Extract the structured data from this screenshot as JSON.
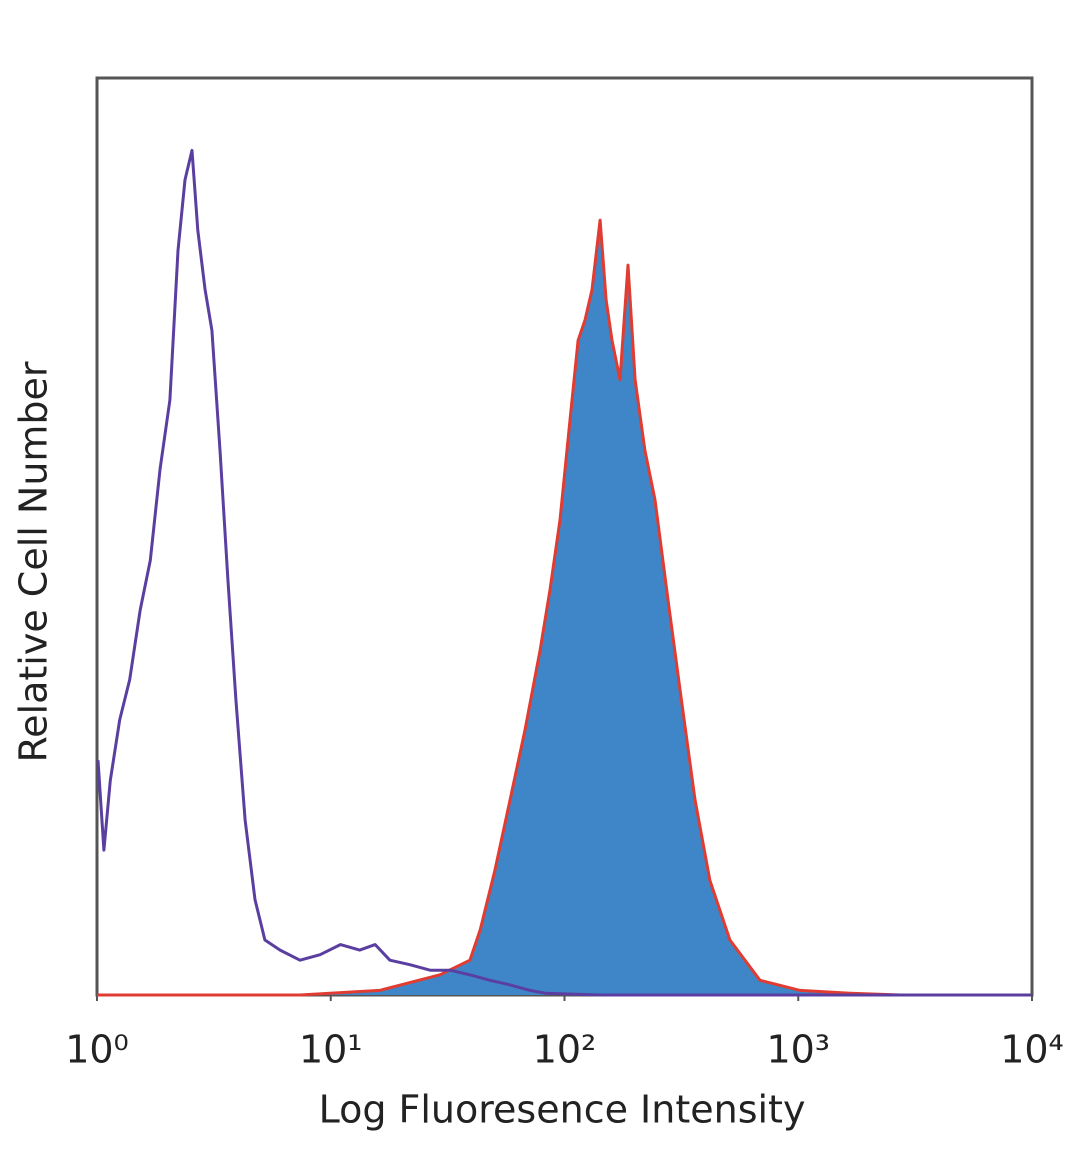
{
  "chart_data": {
    "type": "line",
    "xlabel": "Log Fluoresence Intensity",
    "ylabel": "Relative Cell Number",
    "xscale": "log",
    "xlim": [
      1,
      10000
    ],
    "xticks": [
      {
        "value": 1,
        "label": "10⁰"
      },
      {
        "value": 10,
        "label": "10¹"
      },
      {
        "value": 100,
        "label": "10²"
      },
      {
        "value": 1000,
        "label": "10³"
      },
      {
        "value": 10000,
        "label": "10⁴"
      }
    ],
    "ylim": [
      0,
      100
    ],
    "series": [
      {
        "color": "#3f86c8",
        "line_color": "#e03c31",
        "filled": true,
        "x": [
          1,
          7.39,
          16.2,
          29.3,
          39.4,
          43.6,
          50.4,
          58.5,
          67.8,
          78.6,
          86.7,
          95.7,
          105.6,
          114.3,
          122.4,
          131.1,
          142,
          150.6,
          159.7,
          172.7,
          187,
          200.4,
          220.8,
          243.8,
          277.2,
          311.9,
          361.6,
          419,
          510,
          686,
          1018,
          1665,
          2724,
          10000
        ],
        "values": [
          0,
          0,
          0.5,
          2.2,
          3.8,
          7.1,
          13.6,
          21.3,
          28.9,
          37.6,
          44.2,
          51.8,
          62.7,
          71.4,
          73.6,
          76.9,
          84.5,
          75.8,
          71.4,
          67.1,
          79.6,
          67.1,
          59.4,
          54.0,
          43.1,
          33.3,
          21.3,
          12.5,
          6.0,
          1.6,
          0.5,
          0.2,
          0,
          0
        ]
      },
      {
        "color": "#5a3fa0",
        "filled": false,
        "x": [
          1.01,
          1.07,
          1.14,
          1.25,
          1.38,
          1.53,
          1.69,
          1.86,
          2.05,
          2.22,
          2.38,
          2.55,
          2.7,
          2.9,
          3.1,
          3.36,
          3.63,
          3.93,
          4.3,
          4.74,
          5.23,
          6.07,
          7.39,
          9.0,
          11.0,
          13.3,
          15.5,
          17.9,
          21.8,
          26.6,
          32.4,
          39.4,
          48.0,
          58.5,
          71.2,
          82.6,
          142,
          1018,
          10000
        ],
        "values": [
          25.6,
          15.8,
          23.4,
          30.0,
          34.4,
          42.0,
          47.4,
          57.3,
          64.9,
          81.2,
          88.9,
          92.1,
          83.4,
          76.9,
          72.5,
          59.4,
          45.3,
          32.2,
          19.1,
          10.4,
          6.0,
          4.9,
          3.8,
          4.4,
          5.5,
          4.9,
          5.5,
          3.8,
          3.3,
          2.7,
          2.7,
          2.2,
          1.6,
          1.1,
          0.5,
          0.2,
          0,
          0,
          0
        ]
      }
    ]
  }
}
